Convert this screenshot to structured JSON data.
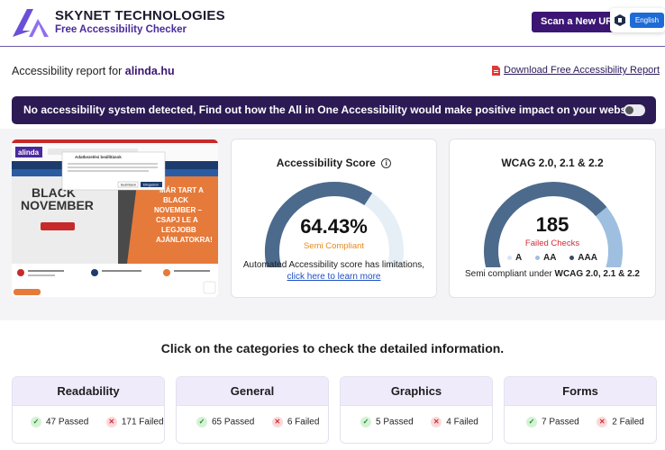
{
  "header": {
    "brand_title": "SKYNET TECHNOLOGIES",
    "brand_subtitle": "Free Accessibility Checker",
    "scan_button": "Scan a New URL",
    "language_button": "English"
  },
  "report": {
    "label_prefix": "Accessibility report for",
    "domain": "alinda.hu",
    "download_link": "Download Free Accessibility Report"
  },
  "banner": {
    "text": "No accessibility system detected, Find out how the All in One Accessibility would make positive impact on your website."
  },
  "screenshot_preview": {
    "site_logo": "alinda",
    "hero_left": [
      "BLACK",
      "NOVEMBER"
    ],
    "hero_right": [
      "MÁR TART A",
      "BLACK",
      "NOVEMBER –",
      "CSAPJ LE A",
      "LEGJOBB",
      "AJÁNLATOKRA!"
    ],
    "dialog_title": "Adatkezelési beállítások",
    "dialog_buttons": [
      "Beállítások",
      "Elfogadom"
    ]
  },
  "accessibility_score": {
    "title": "Accessibility Score",
    "value": "64.43%",
    "value_fraction": 0.6443,
    "status": "Semi Compliant",
    "note_line1": "Automated Accessibility score has limitations,",
    "note_link": "click here to learn more"
  },
  "wcag": {
    "title": "WCAG 2.0, 2.1 & 2.2",
    "failed_count": "185",
    "failed_label": "Failed Checks",
    "legend": [
      "A",
      "AA",
      "AAA"
    ],
    "note_prefix": "Semi compliant under",
    "note_bold": "WCAG 2.0, 2.1 & 2.2"
  },
  "categories_heading": "Click on the categories to check the detailed information.",
  "categories": [
    {
      "name": "Readability",
      "passed": "47 Passed",
      "failed": "171 Failed"
    },
    {
      "name": "General",
      "passed": "65 Passed",
      "failed": "6 Failed"
    },
    {
      "name": "Graphics",
      "passed": "5 Passed",
      "failed": "4 Failed"
    },
    {
      "name": "Forms",
      "passed": "7 Passed",
      "failed": "2 Failed"
    }
  ],
  "colors": {
    "brand": "#3b1673",
    "banner_bg": "#2c1a55",
    "gauge_fill": "#4c6a8c",
    "gauge_track": "#e6eef6",
    "wcag_light": "#9fbfe0",
    "semi_compliant": "#e58a1f",
    "failed": "#d12d33",
    "passed": "#1f8b2a"
  }
}
